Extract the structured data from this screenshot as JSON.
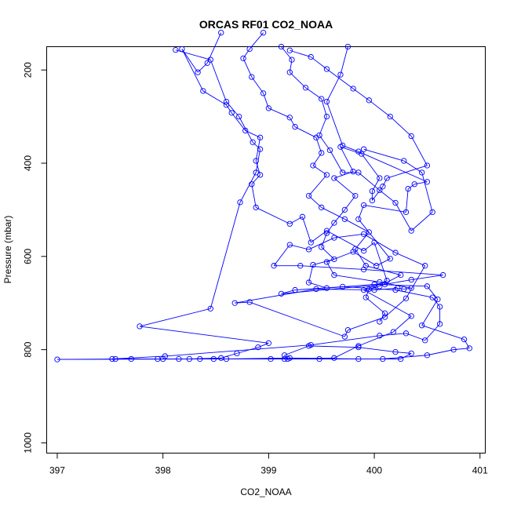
{
  "chart_data": {
    "type": "line",
    "title": "ORCAS RF01 CO2_NOAA",
    "xlabel": "CO2_NOAA",
    "ylabel": "Pressure (mbar)",
    "xlim": [
      396.9,
      401.05
    ],
    "ylim": [
      1022,
      150
    ],
    "y_reversed": true,
    "grid": false,
    "xticks": [
      397,
      398,
      399,
      400,
      401
    ],
    "yticks": [
      200,
      400,
      600,
      800,
      1000
    ],
    "series": [
      {
        "color": "#0000ff",
        "marker": "open-circle",
        "points": [
          [
            398.12,
            157
          ],
          [
            398.45,
            178
          ],
          [
            398.6,
            268
          ],
          [
            398.72,
            300
          ],
          [
            398.85,
            355
          ],
          [
            398.92,
            370
          ],
          [
            398.88,
            420
          ],
          [
            398.73,
            484
          ],
          [
            398.45,
            712
          ],
          [
            397.78,
            750
          ],
          [
            399.0,
            786
          ],
          [
            398.9,
            795
          ],
          [
            398.7,
            808
          ],
          [
            398.55,
            818
          ],
          [
            398.25,
            820
          ],
          [
            397.95,
            820
          ],
          [
            397.55,
            820
          ],
          [
            397.0,
            821
          ],
          [
            398.6,
            820
          ],
          [
            399.2,
            818
          ],
          [
            399.85,
            820
          ],
          [
            400.25,
            820
          ],
          [
            400.35,
            808
          ],
          [
            400.2,
            805
          ],
          [
            399.85,
            795
          ],
          [
            399.38,
            792
          ],
          [
            399.15,
            812
          ],
          [
            399.18,
            820
          ],
          [
            398.35,
            820
          ],
          [
            398.0,
            820
          ],
          [
            397.52,
            820
          ],
          [
            398.02,
            814
          ],
          [
            399.4,
            790
          ],
          [
            400.05,
            770
          ],
          [
            400.3,
            765
          ],
          [
            400.48,
            780
          ],
          [
            400.62,
            745
          ],
          [
            400.62,
            708
          ],
          [
            400.55,
            688
          ],
          [
            400.2,
            672
          ],
          [
            399.7,
            665
          ],
          [
            399.25,
            672
          ],
          [
            399.12,
            680
          ],
          [
            400.1,
            660
          ],
          [
            400.35,
            650
          ],
          [
            400.65,
            640
          ],
          [
            399.9,
            628
          ],
          [
            399.3,
            620
          ],
          [
            399.05,
            620
          ],
          [
            399.2,
            575
          ],
          [
            399.38,
            585
          ],
          [
            399.62,
            560
          ],
          [
            399.9,
            552
          ],
          [
            400.2,
            592
          ],
          [
            400.48,
            620
          ],
          [
            400.3,
            690
          ],
          [
            400.1,
            730
          ],
          [
            399.75,
            758
          ],
          [
            399.72,
            772
          ],
          [
            398.82,
            698
          ],
          [
            398.68,
            700
          ],
          [
            399.45,
            670
          ],
          [
            400.0,
            672
          ],
          [
            400.22,
            668
          ],
          [
            400.28,
            670
          ],
          [
            400.35,
            668
          ],
          [
            400.05,
            655
          ],
          [
            399.62,
            640
          ],
          [
            399.55,
            612
          ],
          [
            399.8,
            590
          ],
          [
            400.02,
            620
          ],
          [
            400.15,
            605
          ],
          [
            399.85,
            520
          ],
          [
            399.9,
            490
          ],
          [
            400.3,
            505
          ],
          [
            400.32,
            455
          ],
          [
            400.38,
            445
          ],
          [
            400.5,
            440
          ],
          [
            399.85,
            375
          ],
          [
            399.7,
            362
          ],
          [
            399.55,
            268
          ],
          [
            399.68,
            210
          ],
          [
            399.75,
            150
          ]
        ]
      },
      {
        "color": "#0000ff",
        "marker": "open-circle",
        "points": [
          [
            398.55,
            120
          ],
          [
            398.42,
            185
          ],
          [
            398.33,
            205
          ],
          [
            398.18,
            155
          ],
          [
            398.38,
            245
          ],
          [
            398.6,
            275
          ],
          [
            398.65,
            292
          ],
          [
            398.78,
            330
          ],
          [
            398.92,
            345
          ],
          [
            398.88,
            395
          ],
          [
            398.92,
            425
          ],
          [
            398.84,
            445
          ],
          [
            398.88,
            495
          ],
          [
            399.2,
            530
          ],
          [
            399.32,
            515
          ],
          [
            399.4,
            570
          ],
          [
            399.55,
            545
          ],
          [
            399.9,
            588
          ],
          [
            400.0,
            570
          ],
          [
            400.12,
            652
          ],
          [
            399.9,
            672
          ],
          [
            400.35,
            728
          ],
          [
            400.18,
            762
          ],
          [
            399.85,
            792
          ],
          [
            399.62,
            818
          ],
          [
            399.15,
            820
          ],
          [
            398.48,
            820
          ],
          [
            397.7,
            820
          ],
          [
            398.15,
            820
          ],
          [
            399.02,
            820
          ],
          [
            399.48,
            820
          ],
          [
            400.08,
            820
          ],
          [
            400.5,
            812
          ],
          [
            400.75,
            800
          ],
          [
            400.9,
            797
          ],
          [
            400.85,
            778
          ],
          [
            400.45,
            748
          ],
          [
            400.6,
            692
          ],
          [
            400.5,
            664
          ],
          [
            400.0,
            660
          ],
          [
            399.55,
            668
          ],
          [
            399.38,
            656
          ],
          [
            399.42,
            618
          ],
          [
            399.62,
            606
          ],
          [
            399.5,
            580
          ],
          [
            399.55,
            550
          ],
          [
            399.62,
            528
          ],
          [
            399.72,
            500
          ],
          [
            399.82,
            470
          ],
          [
            399.62,
            432
          ],
          [
            399.8,
            418
          ],
          [
            399.68,
            365
          ],
          [
            399.88,
            380
          ],
          [
            400.05,
            432
          ],
          [
            399.98,
            460
          ],
          [
            399.98,
            480
          ],
          [
            400.08,
            450
          ],
          [
            400.12,
            432
          ],
          [
            400.5,
            405
          ],
          [
            400.35,
            342
          ],
          [
            400.15,
            300
          ],
          [
            399.95,
            265
          ],
          [
            399.8,
            240
          ],
          [
            399.55,
            198
          ],
          [
            399.4,
            172
          ],
          [
            399.2,
            158
          ]
        ]
      },
      {
        "color": "#0000ff",
        "marker": "open-circle",
        "points": [
          [
            398.95,
            120
          ],
          [
            398.82,
            155
          ],
          [
            398.76,
            175
          ],
          [
            398.84,
            215
          ],
          [
            398.95,
            250
          ],
          [
            399.0,
            282
          ],
          [
            399.2,
            302
          ],
          [
            399.25,
            322
          ],
          [
            399.45,
            345
          ],
          [
            399.5,
            378
          ],
          [
            399.42,
            405
          ],
          [
            399.55,
            425
          ],
          [
            399.38,
            470
          ],
          [
            399.5,
            495
          ],
          [
            399.72,
            520
          ],
          [
            399.95,
            548
          ],
          [
            399.82,
            584
          ],
          [
            399.92,
            620
          ],
          [
            400.25,
            640
          ],
          [
            400.05,
            664
          ],
          [
            399.95,
            670
          ],
          [
            399.92,
            688
          ],
          [
            400.1,
            722
          ],
          [
            400.05,
            740
          ]
        ]
      },
      {
        "color": "#0000ff",
        "marker": "open-circle",
        "points": [
          [
            399.12,
            150
          ],
          [
            399.22,
            178
          ],
          [
            399.2,
            205
          ],
          [
            399.35,
            238
          ],
          [
            399.5,
            262
          ],
          [
            399.55,
            300
          ],
          [
            399.48,
            340
          ],
          [
            399.58,
            372
          ],
          [
            399.7,
            420
          ],
          [
            399.85,
            420
          ],
          [
            400.05,
            458
          ],
          [
            400.2,
            485
          ],
          [
            400.35,
            545
          ],
          [
            400.55,
            505
          ],
          [
            400.45,
            420
          ],
          [
            400.28,
            395
          ],
          [
            399.9,
            370
          ]
        ]
      }
    ]
  }
}
